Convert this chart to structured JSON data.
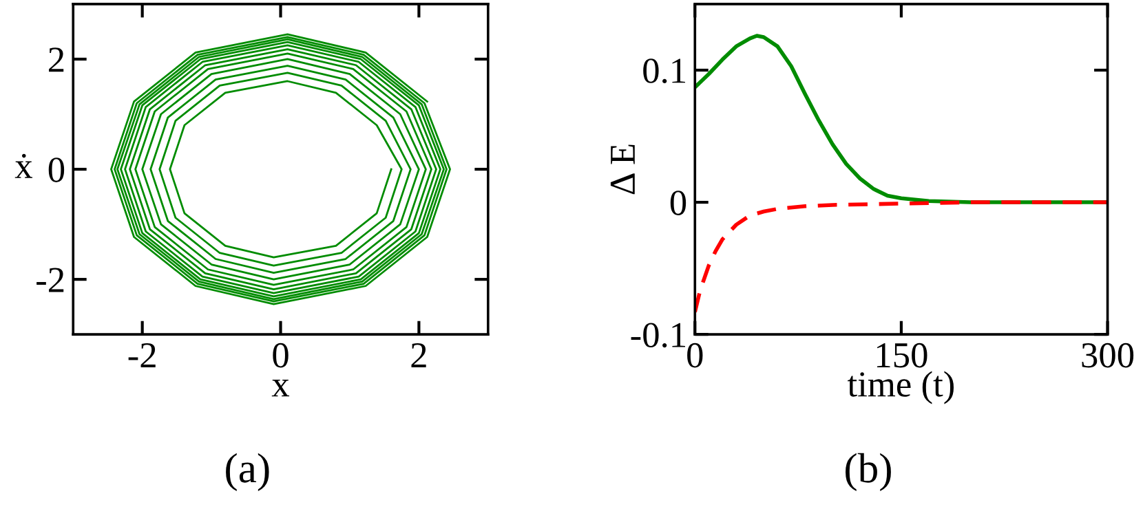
{
  "chart_data": [
    {
      "type": "line",
      "xlabel": "x",
      "ylabel": "ẋ",
      "annotations": [
        "(a)"
      ],
      "xlim": [
        -3,
        3
      ],
      "ylim": [
        -3,
        3
      ],
      "xticks": [
        -2,
        0,
        2
      ],
      "yticks": [
        -2,
        0,
        2
      ],
      "grid": false,
      "legend": false,
      "marker": "none",
      "line_style": "solid",
      "series": [
        {
          "color": "#008c00",
          "x": [
            1.6,
            1.39,
            0.8,
            -0.1,
            -0.8,
            -1.39,
            -1.6,
            -1.39,
            -0.8,
            0.1,
            0.8,
            1.39,
            1.75,
            1.52,
            0.88,
            -0.1,
            -0.88,
            -1.52,
            -1.75,
            -1.52,
            -0.88,
            0.1,
            0.88,
            1.52,
            1.88,
            1.63,
            0.94,
            -0.1,
            -0.94,
            -1.63,
            -1.88,
            -1.63,
            -0.94,
            0.1,
            0.94,
            1.63,
            2.0,
            1.73,
            1.0,
            -0.1,
            -1.0,
            -1.73,
            -2.0,
            -1.73,
            -1.0,
            0.1,
            1.0,
            1.73,
            2.1,
            1.82,
            1.05,
            -0.1,
            -1.05,
            -1.82,
            -2.1,
            -1.82,
            -1.05,
            0.1,
            1.05,
            1.82,
            2.18,
            1.89,
            1.09,
            -0.1,
            -1.09,
            -1.89,
            -2.18,
            -1.89,
            -1.09,
            0.1,
            1.09,
            1.89,
            2.25,
            1.95,
            1.13,
            -0.1,
            -1.13,
            -1.95,
            -2.25,
            -1.95,
            -1.13,
            0.1,
            1.13,
            1.95,
            2.31,
            2.0,
            1.16,
            -0.1,
            -1.16,
            -2.0,
            -2.31,
            -2.0,
            -1.16,
            0.1,
            1.16,
            2.0,
            2.36,
            2.04,
            1.18,
            -0.1,
            -1.18,
            -2.04,
            -2.36,
            -2.04,
            -1.18,
            0.1,
            1.18,
            2.04,
            2.4,
            2.08,
            1.2,
            -0.1,
            -1.2,
            -2.08,
            -2.4,
            -2.08,
            -1.2,
            0.1,
            1.2,
            2.08,
            2.45,
            2.12,
            1.23,
            -0.1,
            -1.23,
            -2.12,
            -2.45,
            -2.12,
            -1.23,
            0.1,
            1.23,
            2.12
          ],
          "values": [
            0,
            -0.8,
            -1.39,
            -1.6,
            -1.39,
            -0.8,
            0,
            0.8,
            1.39,
            1.6,
            1.39,
            0.8,
            0,
            -0.88,
            -1.52,
            -1.75,
            -1.52,
            -0.88,
            0,
            0.88,
            1.52,
            1.75,
            1.52,
            0.88,
            0,
            -0.94,
            -1.63,
            -1.88,
            -1.63,
            -0.94,
            0,
            0.94,
            1.63,
            1.88,
            1.63,
            0.94,
            0,
            -1.0,
            -1.73,
            -2.0,
            -1.73,
            -1.0,
            0,
            1.0,
            1.73,
            2.0,
            1.73,
            1.0,
            0,
            -1.05,
            -1.82,
            -2.1,
            -1.82,
            -1.05,
            0,
            1.05,
            1.82,
            2.1,
            1.82,
            1.05,
            0,
            -1.09,
            -1.89,
            -2.18,
            -1.89,
            -1.09,
            0,
            1.09,
            1.89,
            2.18,
            1.89,
            1.09,
            0,
            -1.13,
            -1.95,
            -2.25,
            -1.95,
            -1.13,
            0,
            1.13,
            1.95,
            2.25,
            1.95,
            1.13,
            0,
            -1.16,
            -2.0,
            -2.31,
            -2.0,
            -1.16,
            0,
            1.16,
            2.0,
            2.31,
            2.0,
            1.16,
            0,
            -1.18,
            -2.04,
            -2.36,
            -2.04,
            -1.18,
            0,
            1.18,
            2.04,
            2.36,
            2.04,
            1.18,
            0,
            -1.2,
            -2.08,
            -2.4,
            -2.08,
            -1.2,
            0,
            1.2,
            2.08,
            2.4,
            2.08,
            1.2,
            0,
            -1.23,
            -2.12,
            -2.45,
            -2.12,
            -1.23,
            0,
            1.23,
            2.12,
            2.45,
            2.12,
            1.23
          ]
        }
      ]
    },
    {
      "type": "line",
      "xlabel": "time (t)",
      "ylabel": "Δ E",
      "annotations": [
        "(b)"
      ],
      "xlim": [
        0,
        300
      ],
      "ylim": [
        -0.1,
        0.15
      ],
      "xticks": [
        0,
        150,
        300
      ],
      "yticks": [
        -0.1,
        0,
        0.1
      ],
      "grid": false,
      "legend": false,
      "marker": "none",
      "series": [
        {
          "color": "#008c00",
          "line_style": "solid",
          "x": [
            0,
            10,
            20,
            30,
            40,
            45,
            50,
            60,
            70,
            80,
            90,
            100,
            110,
            120,
            130,
            140,
            150,
            170,
            200,
            300
          ],
          "values": [
            0.087,
            0.097,
            0.108,
            0.118,
            0.124,
            0.126,
            0.125,
            0.118,
            0.103,
            0.082,
            0.062,
            0.044,
            0.029,
            0.018,
            0.01,
            0.005,
            0.003,
            0.001,
            0,
            0
          ]
        },
        {
          "color": "#ff0000",
          "line_style": "dashed",
          "x": [
            0,
            3,
            5,
            10,
            15,
            20,
            30,
            40,
            50,
            60,
            80,
            100,
            150,
            200,
            300
          ],
          "values": [
            -0.083,
            -0.07,
            -0.063,
            -0.048,
            -0.037,
            -0.028,
            -0.017,
            -0.01,
            -0.007,
            -0.005,
            -0.003,
            -0.002,
            -0.001,
            0,
            0
          ]
        }
      ]
    }
  ]
}
